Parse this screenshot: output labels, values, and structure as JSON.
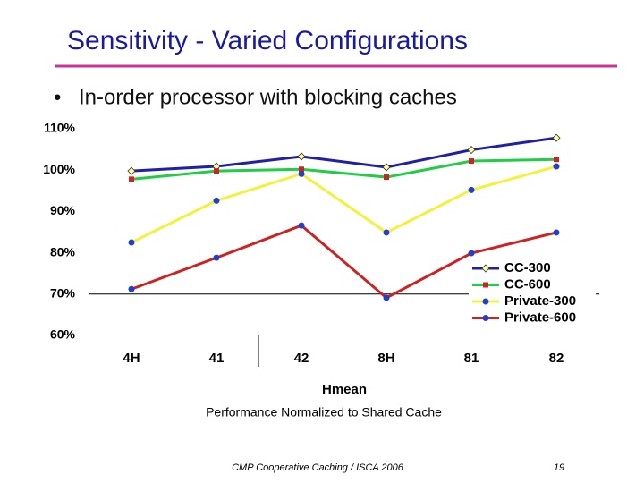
{
  "slide_title": "Sensitivity - Varied Configurations",
  "bullet": "In-order processor with blocking caches",
  "footer": "CMP Cooperative Caching / ISCA 2006",
  "page_number": "19",
  "chart_data": {
    "type": "line",
    "categories": [
      "4H",
      "41",
      "42",
      "8H",
      "81",
      "82"
    ],
    "group_label": "Hmean",
    "x_label": "Performance Normalized to Shared Cache",
    "ylim": [
      60,
      110
    ],
    "yticks": [
      {
        "value": 110,
        "label": "110%"
      },
      {
        "value": 100,
        "label": "100%"
      },
      {
        "value": 90,
        "label": "90%"
      },
      {
        "value": 80,
        "label": "80%"
      },
      {
        "value": 70,
        "label": "70%"
      },
      {
        "value": 60,
        "label": "60%"
      }
    ],
    "x_axis_at": 70,
    "legend": "lower right",
    "series": [
      {
        "name": "CC-300",
        "color": "#1f1fa8",
        "marker_color": "#ffff99",
        "marker": "diamond",
        "values": [
          99.8,
          100.9,
          103.3,
          100.7,
          104.9,
          107.8
        ]
      },
      {
        "name": "CC-600",
        "color": "#22cc44",
        "marker_color": "#cc2222",
        "marker": "square",
        "values": [
          97.8,
          99.8,
          100.2,
          98.3,
          102.2,
          102.6
        ]
      },
      {
        "name": "Private-300",
        "color": "#f2f23a",
        "marker_color": "#1f3fcc",
        "marker": "circle",
        "values": [
          82.5,
          92.6,
          99.1,
          84.9,
          95.2,
          100.9
        ]
      },
      {
        "name": "Private-600",
        "color": "#cc2222",
        "marker_color": "#1f3fcc",
        "marker": "circle",
        "values": [
          71.2,
          78.8,
          86.6,
          69.1,
          79.9,
          84.9
        ]
      }
    ]
  }
}
